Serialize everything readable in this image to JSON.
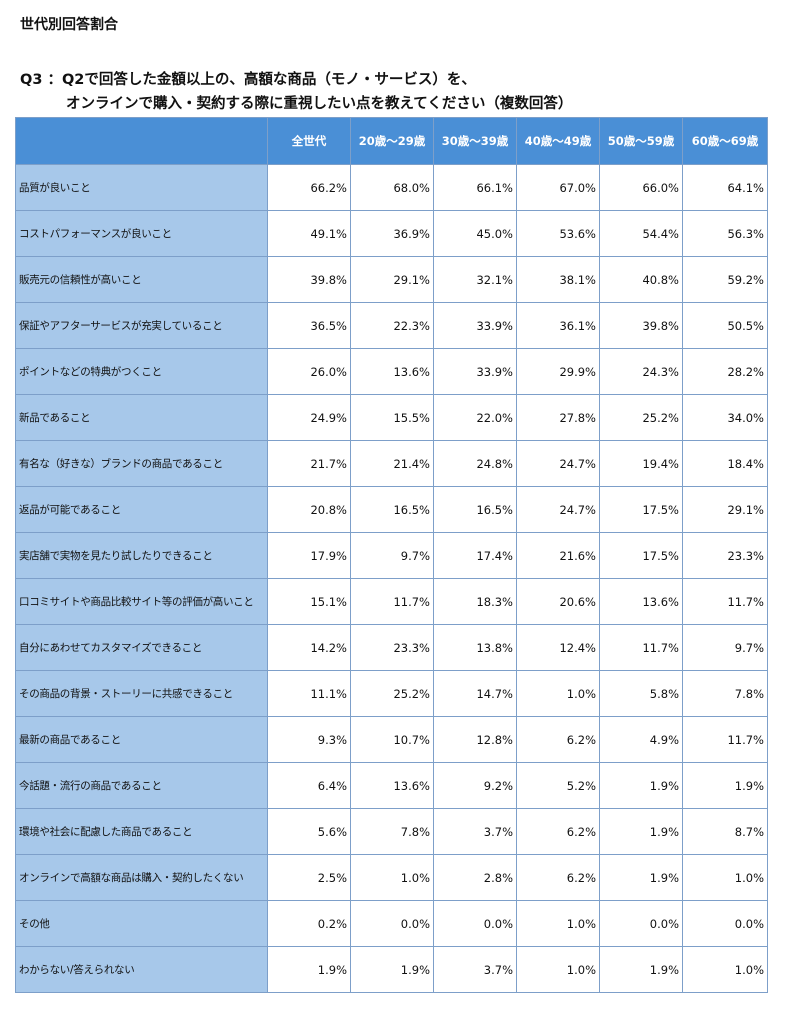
{
  "page": {
    "title": "世代別回答割合",
    "question_line1": "Q3 ：Q2で回答した金額以上の、高額な商品（モノ・サービス）を、",
    "question_line2": "オンラインで購入・契約する際に重視したい点を教えてください（複数回答）"
  },
  "chart_data": {
    "type": "table",
    "title": "世代別回答割合",
    "columns": [
      "",
      "全世代",
      "20歳～29歳",
      "30歳～39歳",
      "40歳～49歳",
      "50歳～59歳",
      "60歳～69歳"
    ],
    "rows": [
      {
        "label": "品質が良いこと",
        "values": [
          "66.2%",
          "68.0%",
          "66.1%",
          "67.0%",
          "66.0%",
          "64.1%"
        ]
      },
      {
        "label": "コストパフォーマンスが良いこと",
        "values": [
          "49.1%",
          "36.9%",
          "45.0%",
          "53.6%",
          "54.4%",
          "56.3%"
        ]
      },
      {
        "label": "販売元の信頼性が高いこと",
        "values": [
          "39.8%",
          "29.1%",
          "32.1%",
          "38.1%",
          "40.8%",
          "59.2%"
        ]
      },
      {
        "label": "保証やアフターサービスが充実していること",
        "values": [
          "36.5%",
          "22.3%",
          "33.9%",
          "36.1%",
          "39.8%",
          "50.5%"
        ]
      },
      {
        "label": "ポイントなどの特典がつくこと",
        "values": [
          "26.0%",
          "13.6%",
          "33.9%",
          "29.9%",
          "24.3%",
          "28.2%"
        ]
      },
      {
        "label": "新品であること",
        "values": [
          "24.9%",
          "15.5%",
          "22.0%",
          "27.8%",
          "25.2%",
          "34.0%"
        ]
      },
      {
        "label": "有名な（好きな）ブランドの商品であること",
        "values": [
          "21.7%",
          "21.4%",
          "24.8%",
          "24.7%",
          "19.4%",
          "18.4%"
        ]
      },
      {
        "label": "返品が可能であること",
        "values": [
          "20.8%",
          "16.5%",
          "16.5%",
          "24.7%",
          "17.5%",
          "29.1%"
        ]
      },
      {
        "label": "実店舗で実物を見たり試したりできること",
        "values": [
          "17.9%",
          "9.7%",
          "17.4%",
          "21.6%",
          "17.5%",
          "23.3%"
        ]
      },
      {
        "label": "口コミサイトや商品比較サイト等の評価が高いこと",
        "values": [
          "15.1%",
          "11.7%",
          "18.3%",
          "20.6%",
          "13.6%",
          "11.7%"
        ]
      },
      {
        "label": "自分にあわせてカスタマイズできること",
        "values": [
          "14.2%",
          "23.3%",
          "13.8%",
          "12.4%",
          "11.7%",
          "9.7%"
        ]
      },
      {
        "label": "その商品の背景・ストーリーに共感できること",
        "values": [
          "11.1%",
          "25.2%",
          "14.7%",
          "1.0%",
          "5.8%",
          "7.8%"
        ]
      },
      {
        "label": "最新の商品であること",
        "values": [
          "9.3%",
          "10.7%",
          "12.8%",
          "6.2%",
          "4.9%",
          "11.7%"
        ]
      },
      {
        "label": "今話題・流行の商品であること",
        "values": [
          "6.4%",
          "13.6%",
          "9.2%",
          "5.2%",
          "1.9%",
          "1.9%"
        ]
      },
      {
        "label": "環境や社会に配慮した商品であること",
        "values": [
          "5.6%",
          "7.8%",
          "3.7%",
          "6.2%",
          "1.9%",
          "8.7%"
        ]
      },
      {
        "label": "オンラインで高額な商品は購入・契約したくない",
        "values": [
          "2.5%",
          "1.0%",
          "2.8%",
          "6.2%",
          "1.9%",
          "1.0%"
        ]
      },
      {
        "label": "その他",
        "values": [
          "0.2%",
          "0.0%",
          "0.0%",
          "1.0%",
          "0.0%",
          "0.0%"
        ]
      },
      {
        "label": "わからない/答えられない",
        "values": [
          "1.9%",
          "1.9%",
          "3.7%",
          "1.0%",
          "1.9%",
          "1.0%"
        ]
      }
    ],
    "colors": {
      "header_bg": "#4a8fd6",
      "label_bg": "#a7c8ea",
      "border": "#7d9fc9"
    }
  }
}
